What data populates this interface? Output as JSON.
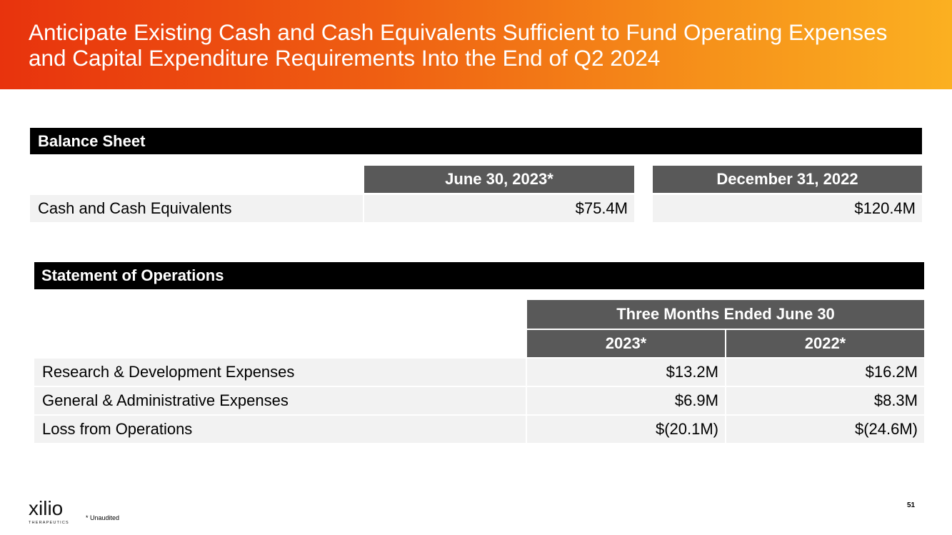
{
  "slide": {
    "title": "Anticipate Existing Cash and Cash Equivalents Sufficient to Fund Operating Expenses and Capital Expenditure Requirements Into the End of Q2 2024",
    "page_number": "51",
    "footnote": "* Unaudited",
    "logo": {
      "name": "xilio",
      "subtitle": "THERAPEUTICS"
    }
  },
  "balance_sheet": {
    "heading": "Balance Sheet",
    "columns": [
      "June 30, 2023*",
      "December 31, 2022"
    ],
    "rows": [
      {
        "label": "Cash and Cash Equivalents",
        "values": [
          "$75.4M",
          "$120.4M"
        ]
      }
    ]
  },
  "operations": {
    "heading": "Statement of Operations",
    "group_header": "Three Months Ended June 30",
    "columns": [
      "2023*",
      "2022*"
    ],
    "rows": [
      {
        "label": "Research & Development Expenses",
        "values": [
          "$13.2M",
          "$16.2M"
        ]
      },
      {
        "label": "General & Administrative Expenses",
        "values": [
          "$6.9M",
          "$8.3M"
        ]
      },
      {
        "label": "Loss from Operations",
        "values": [
          "$(20.1M)",
          "$(24.6M)"
        ]
      }
    ]
  },
  "colors": {
    "header_gradient_start": "#e8330d",
    "header_gradient_end": "#fbb021",
    "section_bar": "#000000",
    "column_header": "#595959",
    "row_fill": "#f2f2f2"
  }
}
